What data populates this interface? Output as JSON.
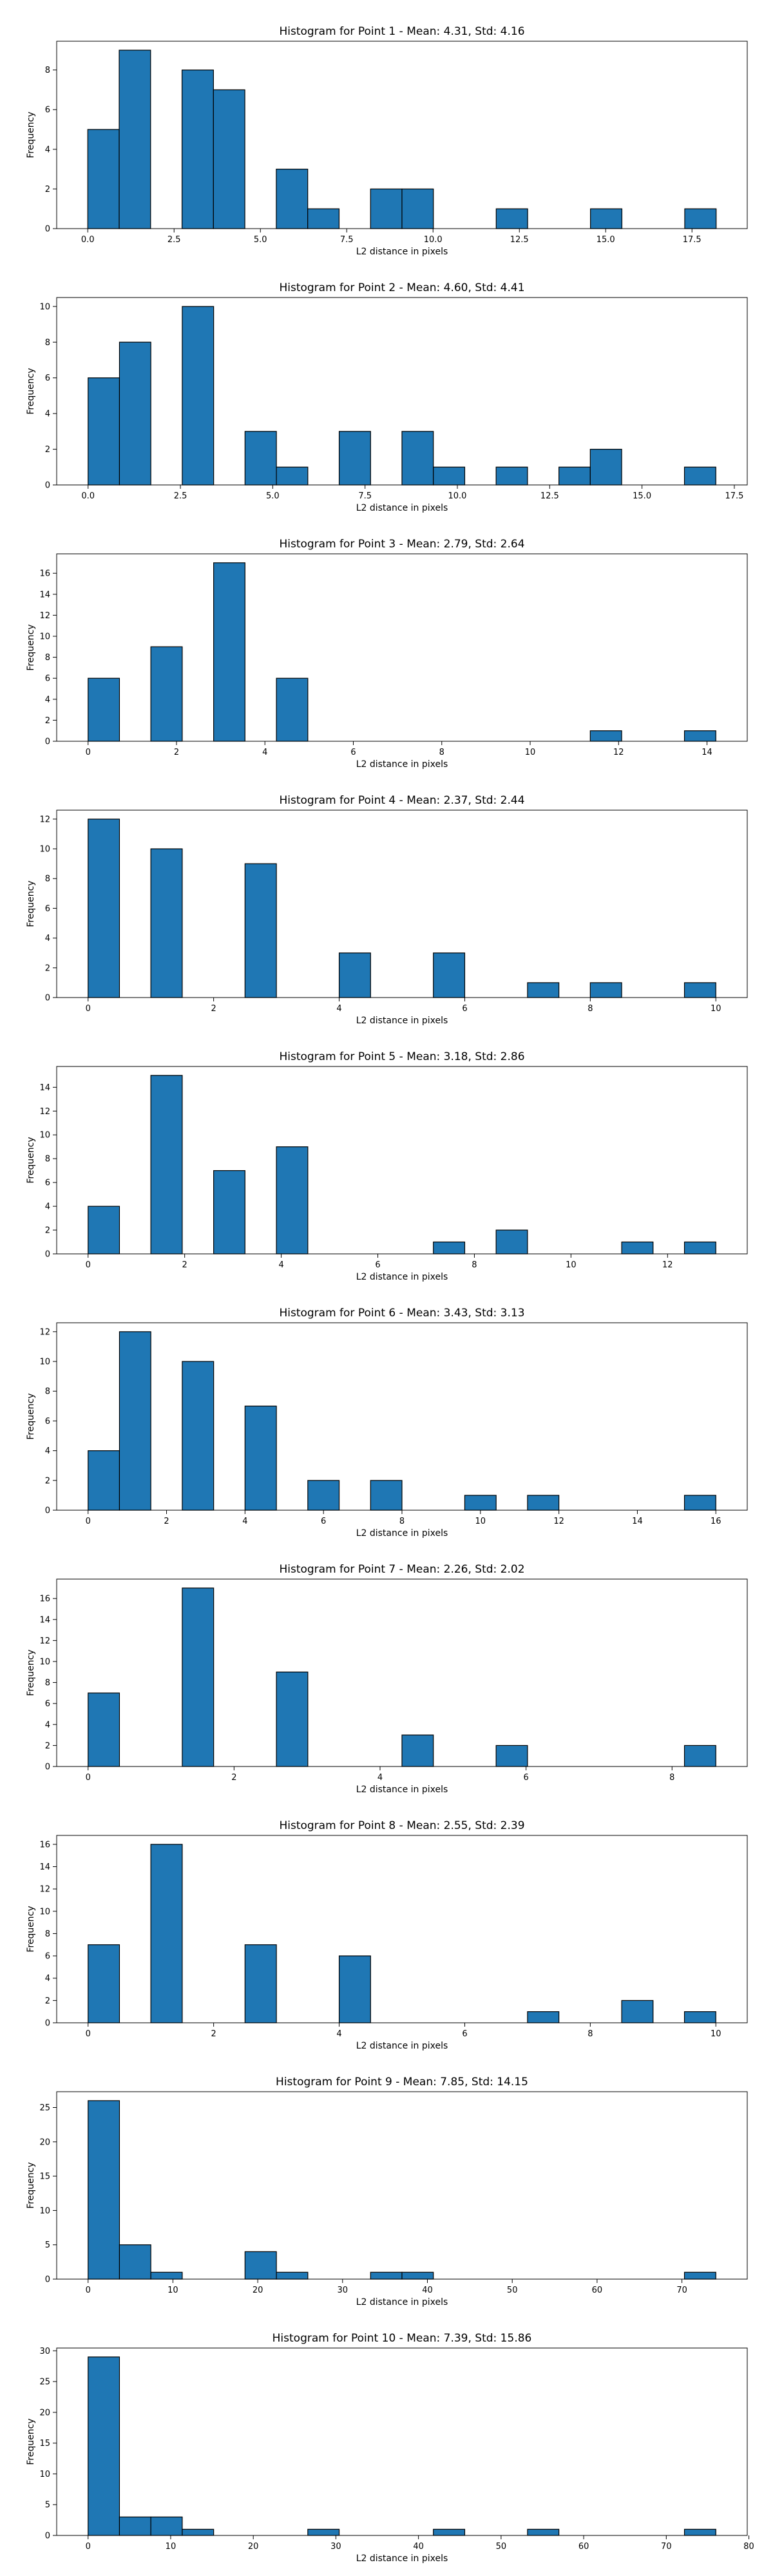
{
  "figure": {
    "bar_color": "#1f77b4",
    "edge_color": "#000000",
    "xlabel": "L2 distance in pixels",
    "ylabel": "Frequency"
  },
  "chart_data": [
    {
      "type": "bar",
      "title": "Histogram for Point 1 - Mean: 4.31, Std: 4.16",
      "xlabel": "L2 distance in pixels",
      "ylabel": "Frequency",
      "xlim": [
        -0.9,
        19.1
      ],
      "ylim": [
        0,
        9.45
      ],
      "xticks": [
        0,
        2.5,
        5,
        7.5,
        10,
        12.5,
        15,
        17.5
      ],
      "xtick_labels": [
        "0.0",
        "2.5",
        "5.0",
        "7.5",
        "10.0",
        "12.5",
        "15.0",
        "17.5"
      ],
      "yticks": [
        0,
        2,
        4,
        6,
        8
      ],
      "ytick_labels": [
        "0",
        "2",
        "4",
        "6",
        "8"
      ],
      "bin_edges": [
        0,
        0.91,
        1.82,
        2.73,
        3.64,
        4.55,
        5.46,
        6.37,
        7.28,
        8.19,
        9.1,
        10.01,
        10.92,
        11.83,
        12.74,
        13.65,
        14.56,
        15.47,
        16.38,
        17.29,
        18.2
      ],
      "values": [
        5,
        9,
        0,
        8,
        7,
        0,
        3,
        1,
        0,
        2,
        2,
        0,
        0,
        1,
        0,
        0,
        1,
        0,
        0,
        1
      ]
    },
    {
      "type": "bar",
      "title": "Histogram for Point 2 - Mean: 4.60, Std: 4.41",
      "xlabel": "L2 distance in pixels",
      "ylabel": "Frequency",
      "xlim": [
        -0.85,
        17.85
      ],
      "ylim": [
        0,
        10.5
      ],
      "xticks": [
        0,
        2.5,
        5,
        7.5,
        10,
        12.5,
        15,
        17.5
      ],
      "xtick_labels": [
        "0.0",
        "2.5",
        "5.0",
        "7.5",
        "10.0",
        "12.5",
        "15.0",
        "17.5"
      ],
      "yticks": [
        0,
        2,
        4,
        6,
        8,
        10
      ],
      "ytick_labels": [
        "0",
        "2",
        "4",
        "6",
        "8",
        "10"
      ],
      "bin_edges": [
        0,
        0.85,
        1.7,
        2.55,
        3.4,
        4.25,
        5.1,
        5.95,
        6.8,
        7.65,
        8.5,
        9.35,
        10.2,
        11.05,
        11.9,
        12.75,
        13.6,
        14.45,
        15.3,
        16.15,
        17.0
      ],
      "values": [
        6,
        8,
        0,
        10,
        0,
        3,
        1,
        0,
        3,
        0,
        3,
        1,
        0,
        1,
        0,
        1,
        2,
        0,
        0,
        1
      ]
    },
    {
      "type": "bar",
      "title": "Histogram for Point 3 - Mean: 2.79, Std: 2.64",
      "xlabel": "L2 distance in pixels",
      "ylabel": "Frequency",
      "xlim": [
        -0.71,
        14.91
      ],
      "ylim": [
        0,
        17.85
      ],
      "xticks": [
        0,
        2,
        4,
        6,
        8,
        10,
        12,
        14
      ],
      "xtick_labels": [
        "0",
        "2",
        "4",
        "6",
        "8",
        "10",
        "12",
        "14"
      ],
      "yticks": [
        0,
        2,
        4,
        6,
        8,
        10,
        12,
        14,
        16
      ],
      "ytick_labels": [
        "0",
        "2",
        "4",
        "6",
        "8",
        "10",
        "12",
        "14",
        "16"
      ],
      "bin_edges": [
        0,
        0.71,
        1.42,
        2.13,
        2.84,
        3.55,
        4.26,
        4.97,
        5.68,
        6.39,
        7.1,
        7.81,
        8.52,
        9.23,
        9.94,
        10.65,
        11.36,
        12.07,
        12.78,
        13.49,
        14.2
      ],
      "values": [
        6,
        0,
        9,
        0,
        17,
        0,
        6,
        0,
        0,
        0,
        0,
        0,
        0,
        0,
        0,
        0,
        1,
        0,
        0,
        1
      ]
    },
    {
      "type": "bar",
      "title": "Histogram for Point 4 - Mean: 2.37, Std: 2.44",
      "xlabel": "L2 distance in pixels",
      "ylabel": "Frequency",
      "xlim": [
        -0.5,
        10.5
      ],
      "ylim": [
        0,
        12.6
      ],
      "xticks": [
        0,
        2,
        4,
        6,
        8,
        10
      ],
      "xtick_labels": [
        "0",
        "2",
        "4",
        "6",
        "8",
        "10"
      ],
      "yticks": [
        0,
        2,
        4,
        6,
        8,
        10,
        12
      ],
      "ytick_labels": [
        "0",
        "2",
        "4",
        "6",
        "8",
        "10",
        "12"
      ],
      "bin_edges": [
        0,
        0.5,
        1,
        1.5,
        2,
        2.5,
        3,
        3.5,
        4,
        4.5,
        5,
        5.5,
        6,
        6.5,
        7,
        7.5,
        8,
        8.5,
        9,
        9.5,
        10
      ],
      "values": [
        12,
        0,
        10,
        0,
        0,
        9,
        0,
        0,
        3,
        0,
        0,
        3,
        0,
        0,
        1,
        0,
        1,
        0,
        0,
        1
      ]
    },
    {
      "type": "bar",
      "title": "Histogram for Point 5 - Mean: 3.18, Std: 2.86",
      "xlabel": "L2 distance in pixels",
      "ylabel": "Frequency",
      "xlim": [
        -0.65,
        13.65
      ],
      "ylim": [
        0,
        15.75
      ],
      "xticks": [
        0,
        2,
        4,
        6,
        8,
        10,
        12
      ],
      "xtick_labels": [
        "0",
        "2",
        "4",
        "6",
        "8",
        "10",
        "12"
      ],
      "yticks": [
        0,
        2,
        4,
        6,
        8,
        10,
        12,
        14
      ],
      "ytick_labels": [
        "0",
        "2",
        "4",
        "6",
        "8",
        "10",
        "12",
        "14"
      ],
      "bin_edges": [
        0,
        0.65,
        1.3,
        1.95,
        2.6,
        3.25,
        3.9,
        4.55,
        5.2,
        5.85,
        6.5,
        7.15,
        7.8,
        8.45,
        9.1,
        9.75,
        10.4,
        11.05,
        11.7,
        12.35,
        13.0
      ],
      "values": [
        4,
        0,
        15,
        0,
        7,
        0,
        9,
        0,
        0,
        0,
        0,
        1,
        0,
        2,
        0,
        0,
        0,
        1,
        0,
        1
      ]
    },
    {
      "type": "bar",
      "title": "Histogram for Point 6 - Mean: 3.43, Std: 3.13",
      "xlabel": "L2 distance in pixels",
      "ylabel": "Frequency",
      "xlim": [
        -0.8,
        16.8
      ],
      "ylim": [
        0,
        12.6
      ],
      "xticks": [
        0,
        2,
        4,
        6,
        8,
        10,
        12,
        14,
        16
      ],
      "xtick_labels": [
        "0",
        "2",
        "4",
        "6",
        "8",
        "10",
        "12",
        "14",
        "16"
      ],
      "yticks": [
        0,
        2,
        4,
        6,
        8,
        10,
        12
      ],
      "ytick_labels": [
        "0",
        "2",
        "4",
        "6",
        "8",
        "10",
        "12"
      ],
      "bin_edges": [
        0,
        0.8,
        1.6,
        2.4,
        3.2,
        4.0,
        4.8,
        5.6,
        6.4,
        7.2,
        8.0,
        8.8,
        9.6,
        10.4,
        11.2,
        12.0,
        12.8,
        13.6,
        14.4,
        15.2,
        16.0
      ],
      "values": [
        4,
        12,
        0,
        10,
        0,
        7,
        0,
        2,
        0,
        2,
        0,
        0,
        1,
        0,
        1,
        0,
        0,
        0,
        0,
        1
      ]
    },
    {
      "type": "bar",
      "title": "Histogram for Point 7 - Mean: 2.26, Std: 2.02",
      "xlabel": "L2 distance in pixels",
      "ylabel": "Frequency",
      "xlim": [
        -0.43,
        9.03
      ],
      "ylim": [
        0,
        17.85
      ],
      "xticks": [
        0,
        2,
        4,
        6,
        8
      ],
      "xtick_labels": [
        "0",
        "2",
        "4",
        "6",
        "8"
      ],
      "yticks": [
        0,
        2,
        4,
        6,
        8,
        10,
        12,
        14,
        16
      ],
      "ytick_labels": [
        "0",
        "2",
        "4",
        "6",
        "8",
        "10",
        "12",
        "14",
        "16"
      ],
      "bin_edges": [
        0,
        0.43,
        0.86,
        1.29,
        1.72,
        2.15,
        2.58,
        3.01,
        3.44,
        3.87,
        4.3,
        4.73,
        5.16,
        5.59,
        6.02,
        6.45,
        6.88,
        7.31,
        7.74,
        8.17,
        8.6
      ],
      "values": [
        7,
        0,
        0,
        17,
        0,
        0,
        9,
        0,
        0,
        0,
        3,
        0,
        0,
        2,
        0,
        0,
        0,
        0,
        0,
        2
      ]
    },
    {
      "type": "bar",
      "title": "Histogram for Point 8 - Mean: 2.55, Std: 2.39",
      "xlabel": "L2 distance in pixels",
      "ylabel": "Frequency",
      "xlim": [
        -0.5,
        10.5
      ],
      "ylim": [
        0,
        16.8
      ],
      "xticks": [
        0,
        2,
        4,
        6,
        8,
        10
      ],
      "xtick_labels": [
        "0",
        "2",
        "4",
        "6",
        "8",
        "10"
      ],
      "yticks": [
        0,
        2,
        4,
        6,
        8,
        10,
        12,
        14,
        16
      ],
      "ytick_labels": [
        "0",
        "2",
        "4",
        "6",
        "8",
        "10",
        "12",
        "14",
        "16"
      ],
      "bin_edges": [
        0,
        0.5,
        1,
        1.5,
        2,
        2.5,
        3,
        3.5,
        4,
        4.5,
        5,
        5.5,
        6,
        6.5,
        7,
        7.5,
        8,
        8.5,
        9,
        9.5,
        10
      ],
      "values": [
        7,
        0,
        16,
        0,
        0,
        7,
        0,
        0,
        6,
        0,
        0,
        0,
        0,
        0,
        1,
        0,
        0,
        2,
        0,
        1
      ]
    },
    {
      "type": "bar",
      "title": "Histogram for Point 9 - Mean: 7.85, Std: 14.15",
      "xlabel": "L2 distance in pixels",
      "ylabel": "Frequency",
      "xlim": [
        -3.7,
        77.7
      ],
      "ylim": [
        0,
        27.3
      ],
      "xticks": [
        0,
        10,
        20,
        30,
        40,
        50,
        60,
        70
      ],
      "xtick_labels": [
        "0",
        "10",
        "20",
        "30",
        "40",
        "50",
        "60",
        "70"
      ],
      "yticks": [
        0,
        5,
        10,
        15,
        20,
        25
      ],
      "ytick_labels": [
        "0",
        "5",
        "10",
        "15",
        "20",
        "25"
      ],
      "bin_edges": [
        0,
        3.7,
        7.4,
        11.1,
        14.8,
        18.5,
        22.2,
        25.9,
        29.6,
        33.3,
        37.0,
        40.7,
        44.4,
        48.1,
        51.8,
        55.5,
        59.2,
        62.9,
        66.6,
        70.3,
        74.0
      ],
      "values": [
        26,
        5,
        1,
        0,
        0,
        4,
        1,
        0,
        0,
        1,
        1,
        0,
        0,
        0,
        0,
        0,
        0,
        0,
        0,
        1
      ]
    },
    {
      "type": "bar",
      "title": "Histogram for Point 10 - Mean: 7.39, Std: 15.86",
      "xlabel": "L2 distance in pixels",
      "ylabel": "Frequency",
      "xlim": [
        -3.8,
        79.8
      ],
      "ylim": [
        0,
        30.45
      ],
      "xticks": [
        0,
        10,
        20,
        30,
        40,
        50,
        60,
        70,
        80
      ],
      "xtick_labels": [
        "0",
        "10",
        "20",
        "30",
        "40",
        "50",
        "60",
        "70",
        "80"
      ],
      "yticks": [
        0,
        5,
        10,
        15,
        20,
        25,
        30
      ],
      "ytick_labels": [
        "0",
        "5",
        "10",
        "15",
        "20",
        "25",
        "30"
      ],
      "bin_edges": [
        0,
        3.8,
        7.6,
        11.4,
        15.2,
        19.0,
        22.8,
        26.6,
        30.4,
        34.2,
        38.0,
        41.8,
        45.6,
        49.4,
        53.2,
        57.0,
        60.8,
        64.6,
        68.4,
        72.2,
        76.0
      ],
      "values": [
        29,
        3,
        3,
        1,
        0,
        0,
        0,
        1,
        0,
        0,
        0,
        1,
        0,
        0,
        1,
        0,
        0,
        0,
        0,
        1
      ]
    }
  ]
}
